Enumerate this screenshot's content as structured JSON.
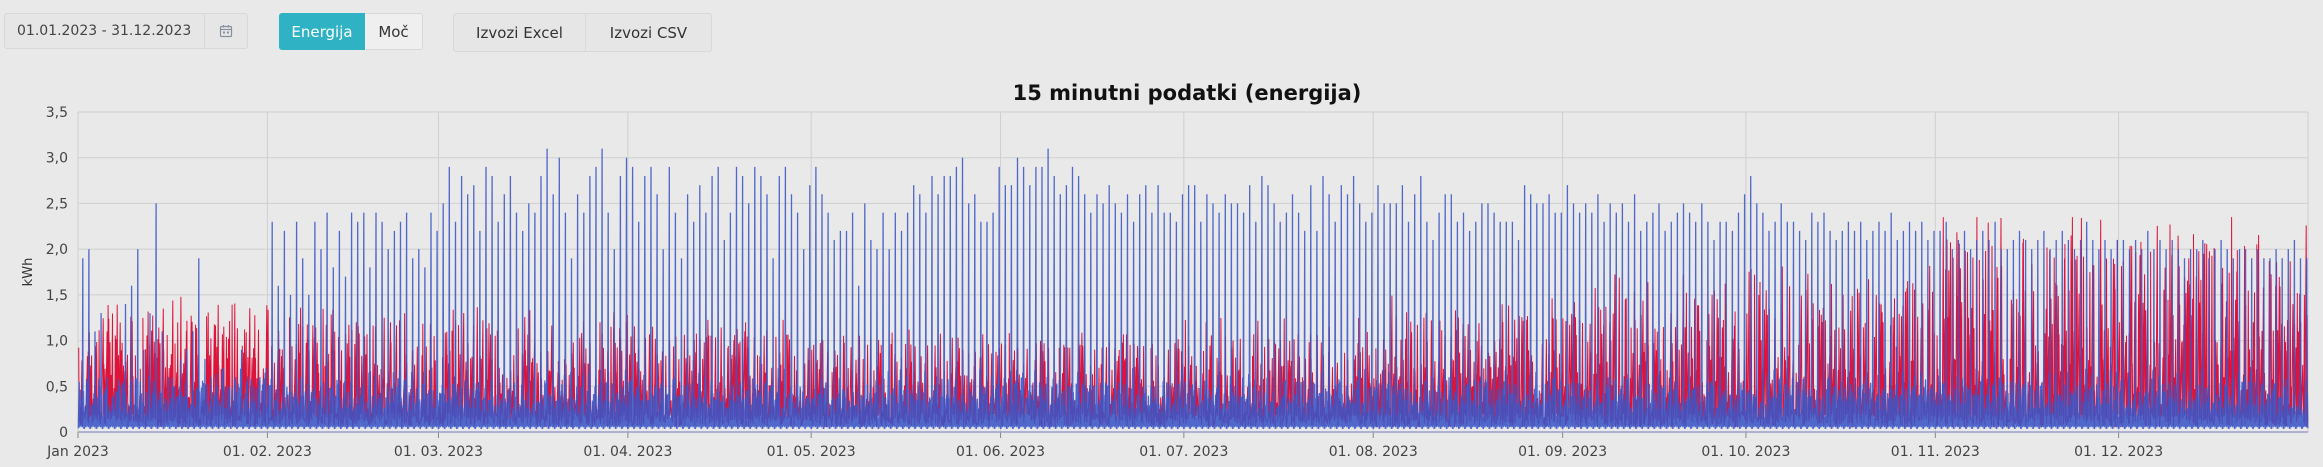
{
  "filters": {
    "date_range": "01.01.2023 - 31.12.2023",
    "calendar_icon": "calendar-icon"
  },
  "toggle": {
    "energy_label": "Energija",
    "power_label": "Moč",
    "active": "energy"
  },
  "export": {
    "excel_label": "Izvozi Excel",
    "csv_label": "Izvozi CSV"
  },
  "colors": {
    "accent": "#2fb3c4",
    "series_consumption": "#3a55c6",
    "series_production": "#dc143c"
  },
  "chart_data": {
    "type": "line",
    "title": "15 minutni podatki (energija)",
    "xlabel": "",
    "ylabel": "kWh",
    "ylim": [
      0,
      3.5
    ],
    "yticks": [
      "0",
      "0,5",
      "1,0",
      "1,5",
      "2,0",
      "2,5",
      "3,0",
      "3,5"
    ],
    "grid": true,
    "x_range": [
      "2023-01-01",
      "2023-12-31"
    ],
    "x_tick_labels": [
      "Jan 2023",
      "01. 02. 2023",
      "01. 03. 2023",
      "01. 04. 2023",
      "01. 05. 2023",
      "01. 06. 2023",
      "01. 07. 2023",
      "01. 08. 2023",
      "01. 09. 2023",
      "01. 10. 2023",
      "01. 11. 2023",
      "01. 12. 2023"
    ],
    "series": [
      {
        "color": "#3a55c6",
        "daily_peaks": {
          "Jan": [
            1.9,
            2.0,
            1.1,
            1.3,
            0.6,
            0.4,
            0.5,
            1.4,
            1.6,
            2.0,
            0.9,
            1.3,
            2.5,
            1.1,
            0.6,
            0.5,
            0.8,
            0.9,
            1.1,
            1.9,
            0.8,
            0.6,
            0.5,
            0.7,
            0.5,
            0.6,
            0.9,
            0.6,
            0.5,
            0.6,
            0.7
          ],
          "Feb": [
            2.3,
            1.6,
            2.2,
            1.5,
            2.3,
            1.9,
            1.5,
            2.3,
            2.0,
            2.4,
            1.8,
            2.2,
            1.7,
            2.4,
            2.3,
            2.4,
            1.8,
            2.4,
            2.3,
            2.0,
            2.2,
            2.3,
            2.4,
            1.9,
            2.0,
            1.8,
            2.4,
            2.2
          ],
          "Mar": [
            2.5,
            2.9,
            2.3,
            2.8,
            2.6,
            2.7,
            2.2,
            2.9,
            2.8,
            2.3,
            2.6,
            2.8,
            2.4,
            2.2,
            2.5,
            2.4,
            2.8,
            3.1,
            2.6,
            3.0,
            2.4,
            1.9,
            2.6,
            2.4,
            2.8,
            2.9,
            3.1,
            2.4,
            2.0,
            2.8,
            3.0
          ],
          "Apr": [
            2.9,
            2.3,
            2.8,
            2.9,
            2.6,
            2.0,
            2.9,
            2.4,
            1.9,
            2.6,
            2.3,
            2.7,
            2.4,
            2.8,
            2.9,
            2.1,
            2.4,
            2.9,
            2.8,
            2.5,
            2.9,
            2.8,
            2.6,
            1.9,
            2.8,
            2.9,
            2.6,
            2.4,
            2.0,
            2.7
          ],
          "May": [
            2.9,
            2.6,
            2.4,
            2.1,
            2.2,
            2.2,
            2.4,
            1.6,
            2.5,
            2.1,
            2.0,
            2.4,
            2.0,
            2.4,
            2.2,
            2.4,
            2.7,
            2.6,
            2.4,
            2.8,
            2.6,
            2.8,
            2.8,
            2.9,
            3.0,
            2.5,
            2.6,
            2.3,
            2.3,
            2.4,
            2.9
          ],
          "Jun": [
            2.7,
            2.7,
            3.0,
            2.9,
            2.7,
            2.9,
            2.9,
            3.1,
            2.8,
            2.6,
            2.7,
            2.9,
            2.8,
            2.6,
            2.4,
            2.6,
            2.5,
            2.7,
            2.5,
            2.4,
            2.6,
            2.3,
            2.6,
            2.7,
            2.4,
            2.7,
            2.4,
            2.4,
            2.3,
            2.6
          ],
          "Jul": [
            2.7,
            2.7,
            2.3,
            2.6,
            2.5,
            2.4,
            2.6,
            2.5,
            2.5,
            2.4,
            2.7,
            2.3,
            2.8,
            2.7,
            2.5,
            2.3,
            2.4,
            2.6,
            2.4,
            2.2,
            2.7,
            2.2,
            2.8,
            2.6,
            2.3,
            2.7,
            2.6,
            2.8,
            2.5,
            2.3,
            2.4
          ],
          "Aug": [
            2.7,
            2.5,
            2.5,
            2.5,
            2.7,
            2.3,
            2.6,
            2.8,
            2.3,
            2.1,
            2.4,
            2.6,
            2.6,
            2.3,
            2.4,
            2.2,
            2.3,
            2.5,
            2.5,
            2.4,
            2.3,
            2.3,
            2.3,
            2.1,
            2.7,
            2.6,
            2.5,
            2.5,
            2.6,
            2.4,
            2.4
          ],
          "Sep": [
            2.7,
            2.5,
            2.4,
            2.5,
            2.4,
            2.6,
            2.3,
            2.5,
            2.4,
            2.5,
            2.3,
            2.6,
            2.2,
            2.3,
            2.4,
            2.5,
            2.2,
            2.3,
            2.4,
            2.5,
            2.4,
            2.3,
            2.5,
            2.3,
            2.1,
            2.3,
            2.3,
            2.2,
            2.4,
            2.6
          ],
          "Oct": [
            2.8,
            2.5,
            2.4,
            2.2,
            2.3,
            2.5,
            2.3,
            2.3,
            2.2,
            2.1,
            2.4,
            2.3,
            2.4,
            2.2,
            2.1,
            2.2,
            2.3,
            2.2,
            2.3,
            2.1,
            2.2,
            2.3,
            2.2,
            2.4,
            2.1,
            2.2,
            2.3,
            2.2,
            2.3,
            2.1,
            2.2
          ],
          "Nov": [
            2.2,
            2.3,
            2.0,
            2.1,
            2.2,
            2.0,
            2.1,
            2.2,
            2.1,
            2.3,
            2.0,
            2.0,
            2.1,
            2.2,
            2.1,
            2.0,
            2.1,
            2.2,
            2.0,
            2.1,
            2.2,
            2.1,
            2.0,
            2.1,
            2.3,
            2.1,
            2.0,
            2.1,
            2.0,
            2.1
          ],
          "Dec": [
            2.1,
            2.0,
            2.1,
            2.0,
            2.2,
            2.0,
            2.1,
            2.0,
            2.1,
            2.0,
            1.9,
            2.0,
            2.0,
            2.1,
            1.9,
            2.0,
            2.1,
            2.0,
            1.9,
            2.0,
            2.0,
            1.9,
            2.0,
            1.9,
            1.9,
            2.0,
            1.9,
            2.0,
            2.1,
            1.9,
            1.9
          ]
        }
      },
      {
        "color": "#dc143c",
        "monthly_envelope": {
          "Jan": 1.2,
          "Feb": 1.1,
          "Mar": 1.1,
          "Apr": 1.0,
          "May": 0.9,
          "Jun": 0.9,
          "Jul": 1.0,
          "Aug": 1.2,
          "Sep": 1.4,
          "Oct": 1.5,
          "Nov": 2.0,
          "Dec": 2.0
        },
        "max": 2.35
      }
    ]
  }
}
